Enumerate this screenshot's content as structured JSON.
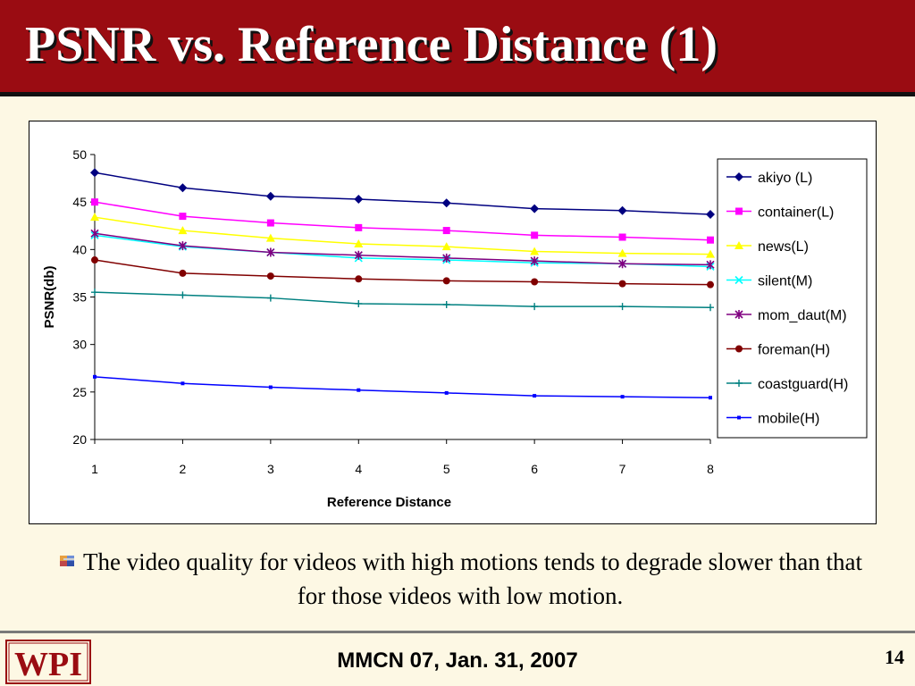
{
  "slide": {
    "title": "PSNR vs. Reference Distance (1)",
    "caption": "The video quality for videos with high motions tends to degrade slower than that for those videos with low motion.",
    "footer": "MMCN 07, Jan. 31, 2007",
    "page_number": "14",
    "logo_text": "WPI"
  },
  "colors": {
    "title_bar": "#9a0c12",
    "background": "#fdf8e4",
    "logo": "#9a0c12"
  },
  "icons": {
    "bullet": "bullet-icon",
    "logo": "wpi-logo"
  },
  "chart_data": {
    "type": "line",
    "xlabel": "Reference Distance",
    "ylabel": "PSNR(db)",
    "x": [
      1,
      2,
      3,
      4,
      5,
      6,
      7,
      8
    ],
    "xlim": [
      1,
      8
    ],
    "ylim": [
      20,
      50
    ],
    "yticks": [
      20,
      25,
      30,
      35,
      40,
      45,
      50
    ],
    "grid": false,
    "legend_position": "right",
    "series": [
      {
        "name": "akiyo (L)",
        "color": "#000080",
        "marker": "diamond",
        "values": [
          48.1,
          46.5,
          45.6,
          45.3,
          44.9,
          44.3,
          44.1,
          43.7
        ]
      },
      {
        "name": "container(L)",
        "color": "#ff00ff",
        "marker": "square",
        "values": [
          45.0,
          43.5,
          42.8,
          42.3,
          42.0,
          41.5,
          41.3,
          41.0
        ]
      },
      {
        "name": "news(L)",
        "color": "#ffff00",
        "marker": "triangle",
        "values": [
          43.4,
          42.0,
          41.2,
          40.6,
          40.3,
          39.8,
          39.6,
          39.5
        ]
      },
      {
        "name": "silent(M)",
        "color": "#00ffff",
        "marker": "x",
        "values": [
          41.5,
          40.3,
          39.7,
          39.1,
          38.9,
          38.6,
          38.5,
          38.2
        ]
      },
      {
        "name": "mom_daut(M)",
        "color": "#800080",
        "marker": "star",
        "values": [
          41.7,
          40.4,
          39.7,
          39.4,
          39.1,
          38.8,
          38.5,
          38.4
        ]
      },
      {
        "name": "foreman(H)",
        "color": "#800000",
        "marker": "circle",
        "values": [
          38.9,
          37.5,
          37.2,
          36.9,
          36.7,
          36.6,
          36.4,
          36.3
        ]
      },
      {
        "name": "coastguard(H)",
        "color": "#008080",
        "marker": "plus",
        "values": [
          35.5,
          35.2,
          34.9,
          34.3,
          34.2,
          34.0,
          34.0,
          33.9
        ]
      },
      {
        "name": "mobile(H)",
        "color": "#0000ff",
        "marker": "dash",
        "values": [
          26.6,
          25.9,
          25.5,
          25.2,
          24.9,
          24.6,
          24.5,
          24.4
        ]
      }
    ]
  }
}
